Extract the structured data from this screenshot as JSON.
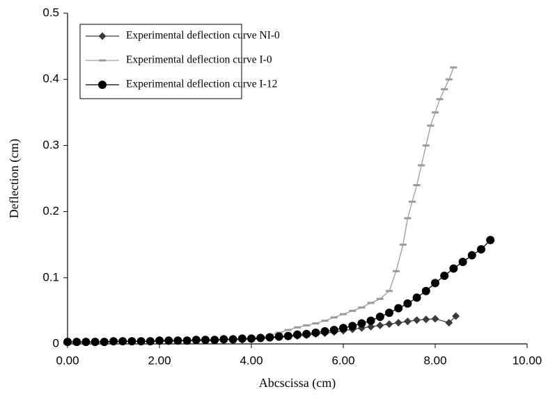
{
  "chart_data": {
    "type": "line",
    "xlabel": "Abcscissa (cm)",
    "ylabel": "Deflection (cm)",
    "xlim": [
      0,
      10
    ],
    "ylim": [
      0,
      0.5
    ],
    "xticks": [
      {
        "value": 0,
        "label": "0.00"
      },
      {
        "value": 2,
        "label": "2.00"
      },
      {
        "value": 4,
        "label": "4.00"
      },
      {
        "value": 6,
        "label": "6.00"
      },
      {
        "value": 8,
        "label": "8.00"
      },
      {
        "value": 10,
        "label": "10.00"
      }
    ],
    "yticks": [
      0,
      0.1,
      0.2,
      0.3,
      0.4,
      0.5
    ],
    "grid": false,
    "legend": "upper left",
    "series": [
      {
        "name": "Experimental deflection curve NI-0",
        "color": "#3a3a3a",
        "marker": "diamond",
        "x": [
          0,
          0.2,
          0.4,
          0.6,
          0.8,
          1.0,
          1.2,
          1.4,
          1.6,
          1.8,
          2.0,
          2.2,
          2.4,
          2.6,
          2.8,
          3.0,
          3.2,
          3.4,
          3.6,
          3.8,
          4.0,
          4.2,
          4.4,
          4.6,
          4.8,
          5.0,
          5.2,
          5.4,
          5.6,
          5.8,
          6.0,
          6.2,
          6.4,
          6.6,
          6.8,
          7.0,
          7.2,
          7.4,
          7.6,
          7.8,
          8.0,
          8.3,
          8.45
        ],
        "values": [
          0.003,
          0.003,
          0.003,
          0.003,
          0.003,
          0.003,
          0.004,
          0.004,
          0.004,
          0.004,
          0.004,
          0.004,
          0.005,
          0.005,
          0.005,
          0.005,
          0.005,
          0.006,
          0.006,
          0.006,
          0.007,
          0.008,
          0.009,
          0.01,
          0.011,
          0.012,
          0.013,
          0.015,
          0.016,
          0.018,
          0.02,
          0.022,
          0.024,
          0.026,
          0.028,
          0.03,
          0.032,
          0.034,
          0.036,
          0.037,
          0.038,
          0.032,
          0.042
        ]
      },
      {
        "name": "Experimental deflection curve I-0",
        "color": "#9a9a9a",
        "marker": "dash",
        "x": [
          0,
          0.2,
          0.4,
          0.6,
          0.8,
          1.0,
          1.2,
          1.4,
          1.6,
          1.8,
          2.0,
          2.2,
          2.4,
          2.6,
          2.8,
          3.0,
          3.2,
          3.4,
          3.6,
          3.8,
          4.0,
          4.2,
          4.4,
          4.6,
          4.8,
          5.0,
          5.2,
          5.4,
          5.6,
          5.8,
          6.0,
          6.2,
          6.4,
          6.6,
          6.8,
          7.0,
          7.15,
          7.3,
          7.4,
          7.5,
          7.6,
          7.7,
          7.8,
          7.9,
          8.0,
          8.1,
          8.2,
          8.3,
          8.4
        ],
        "values": [
          0.003,
          0.003,
          0.003,
          0.003,
          0.003,
          0.004,
          0.004,
          0.004,
          0.004,
          0.004,
          0.005,
          0.005,
          0.005,
          0.005,
          0.005,
          0.006,
          0.006,
          0.006,
          0.006,
          0.006,
          0.008,
          0.01,
          0.013,
          0.017,
          0.021,
          0.025,
          0.028,
          0.031,
          0.035,
          0.04,
          0.045,
          0.05,
          0.055,
          0.062,
          0.068,
          0.08,
          0.11,
          0.15,
          0.19,
          0.215,
          0.24,
          0.27,
          0.3,
          0.33,
          0.35,
          0.37,
          0.385,
          0.4,
          0.418
        ]
      },
      {
        "name": "Experimental deflection curve I-12",
        "color": "#000000",
        "marker": "circle",
        "x": [
          0,
          0.2,
          0.4,
          0.6,
          0.8,
          1.0,
          1.2,
          1.4,
          1.6,
          1.8,
          2.0,
          2.2,
          2.4,
          2.6,
          2.8,
          3.0,
          3.2,
          3.4,
          3.6,
          3.8,
          4.0,
          4.2,
          4.4,
          4.6,
          4.8,
          5.0,
          5.2,
          5.4,
          5.6,
          5.8,
          6.0,
          6.2,
          6.4,
          6.6,
          6.8,
          7.0,
          7.2,
          7.4,
          7.6,
          7.8,
          8.0,
          8.2,
          8.4,
          8.6,
          8.8,
          9.0,
          9.2
        ],
        "values": [
          0.003,
          0.003,
          0.003,
          0.003,
          0.003,
          0.004,
          0.004,
          0.004,
          0.004,
          0.004,
          0.005,
          0.005,
          0.005,
          0.005,
          0.006,
          0.006,
          0.006,
          0.007,
          0.007,
          0.008,
          0.008,
          0.009,
          0.01,
          0.011,
          0.012,
          0.014,
          0.015,
          0.017,
          0.019,
          0.021,
          0.024,
          0.027,
          0.031,
          0.035,
          0.041,
          0.047,
          0.054,
          0.061,
          0.07,
          0.08,
          0.092,
          0.103,
          0.114,
          0.124,
          0.134,
          0.143,
          0.157
        ]
      }
    ]
  }
}
